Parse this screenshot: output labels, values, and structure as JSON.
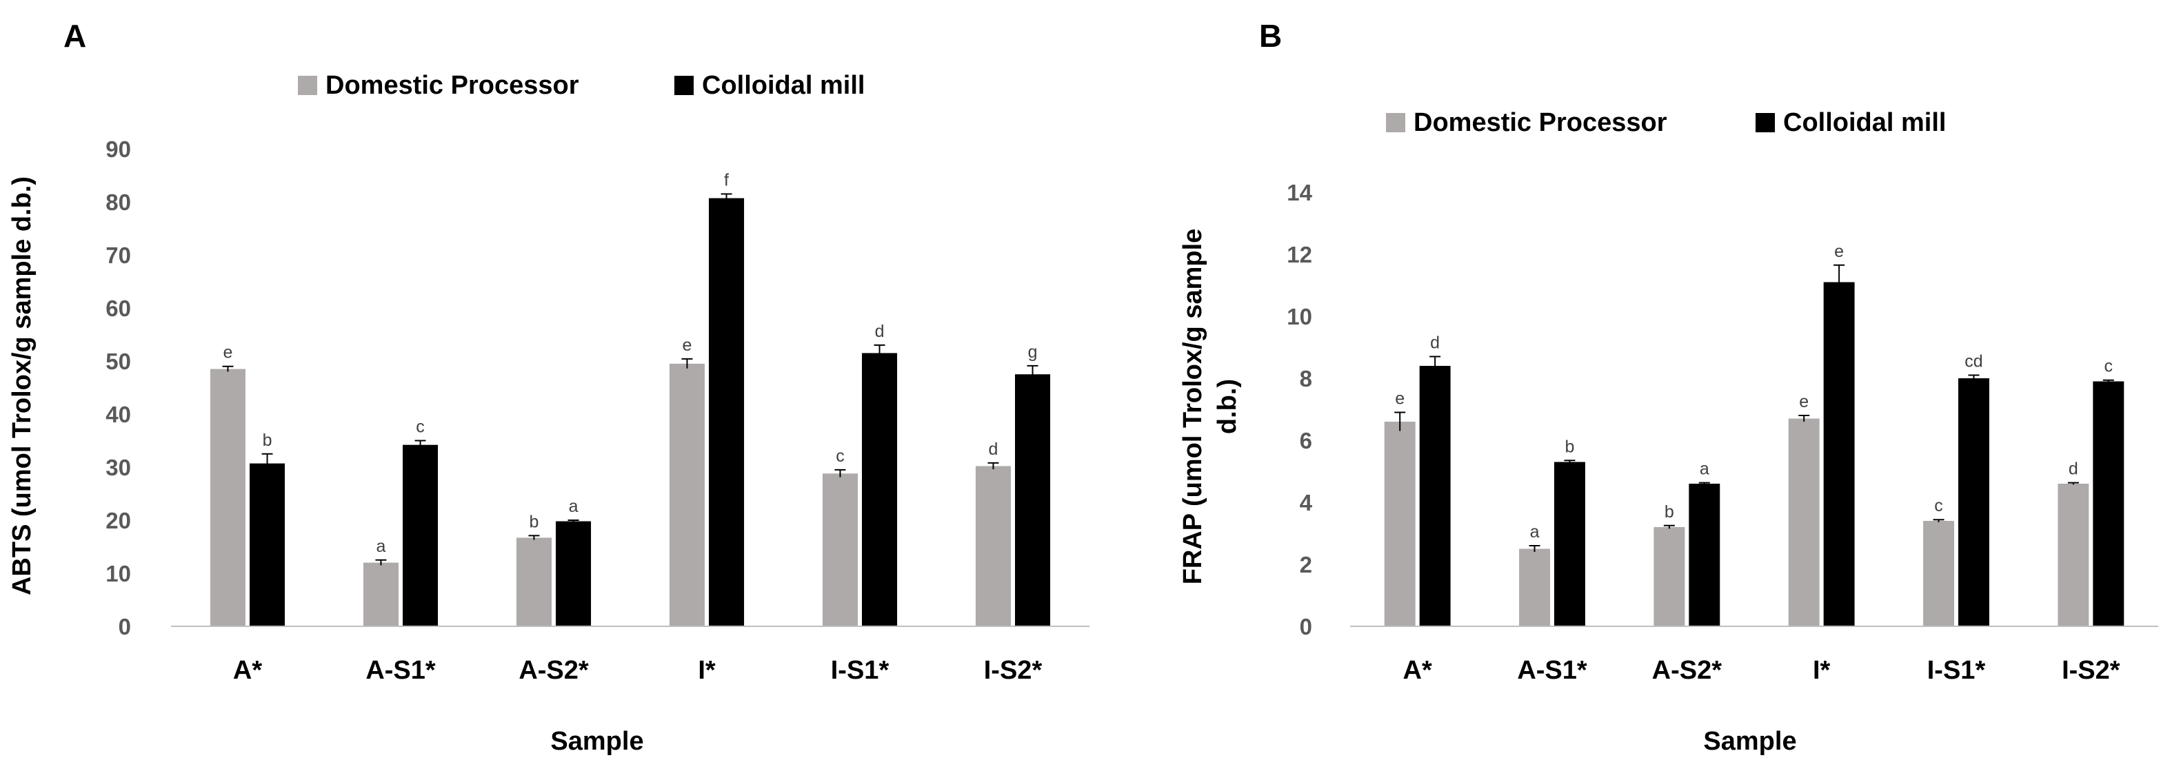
{
  "colors": {
    "domestic": "#aeaaaa",
    "colloidal": "#000000",
    "axis": "#bfbfbf",
    "error_bar": "#000000"
  },
  "chart_data": [
    {
      "panel": "A",
      "type": "bar",
      "categories": [
        "A*",
        "A-S1*",
        "A-S2*",
        "I*",
        "I-S1*",
        "I-S2*"
      ],
      "xlabel": "Sample",
      "ylabel": "ABTS (umol Trolox/g sample d.b.)",
      "ylim": [
        0,
        90
      ],
      "yticks": [
        0,
        10,
        20,
        30,
        40,
        50,
        60,
        70,
        80,
        90
      ],
      "legend_position": "top",
      "grid": false,
      "series": [
        {
          "name": "Domestic Processor",
          "values": [
            48.5,
            12.0,
            16.7,
            49.5,
            28.8,
            30.2
          ],
          "errors": [
            0.5,
            0.5,
            0.4,
            0.9,
            0.7,
            0.6
          ],
          "labels": [
            "e",
            "a",
            "b",
            "e",
            "c",
            "d"
          ]
        },
        {
          "name": "Colloidal mill",
          "values": [
            30.7,
            34.2,
            19.8,
            80.7,
            51.5,
            47.5
          ],
          "errors": [
            1.8,
            0.8,
            0.2,
            0.8,
            1.5,
            1.6
          ],
          "labels": [
            "b",
            "c",
            "a",
            "f",
            "d",
            "g"
          ]
        }
      ]
    },
    {
      "panel": "B",
      "type": "bar",
      "categories": [
        "A*",
        "A-S1*",
        "A-S2*",
        "I*",
        "I-S1*",
        "I-S2*"
      ],
      "xlabel": "Sample",
      "ylabel": "FRAP (umol Trolox/g sample d.b.)",
      "ylim": [
        0,
        14
      ],
      "yticks": [
        0,
        2,
        4,
        6,
        8,
        10,
        12,
        14
      ],
      "legend_position": "top",
      "grid": false,
      "series": [
        {
          "name": "Domestic Processor",
          "values": [
            6.6,
            2.5,
            3.2,
            6.7,
            3.4,
            4.6
          ],
          "errors": [
            0.3,
            0.1,
            0.05,
            0.1,
            0.04,
            0.03
          ],
          "labels": [
            "e",
            "a",
            "b",
            "e",
            "c",
            "d"
          ]
        },
        {
          "name": "Colloidal mill",
          "values": [
            8.4,
            5.3,
            4.6,
            11.1,
            8.0,
            7.9
          ],
          "errors": [
            0.3,
            0.05,
            0.03,
            0.55,
            0.1,
            0.04
          ],
          "labels": [
            "d",
            "b",
            "a",
            "e",
            "cd",
            "c"
          ]
        }
      ]
    }
  ]
}
